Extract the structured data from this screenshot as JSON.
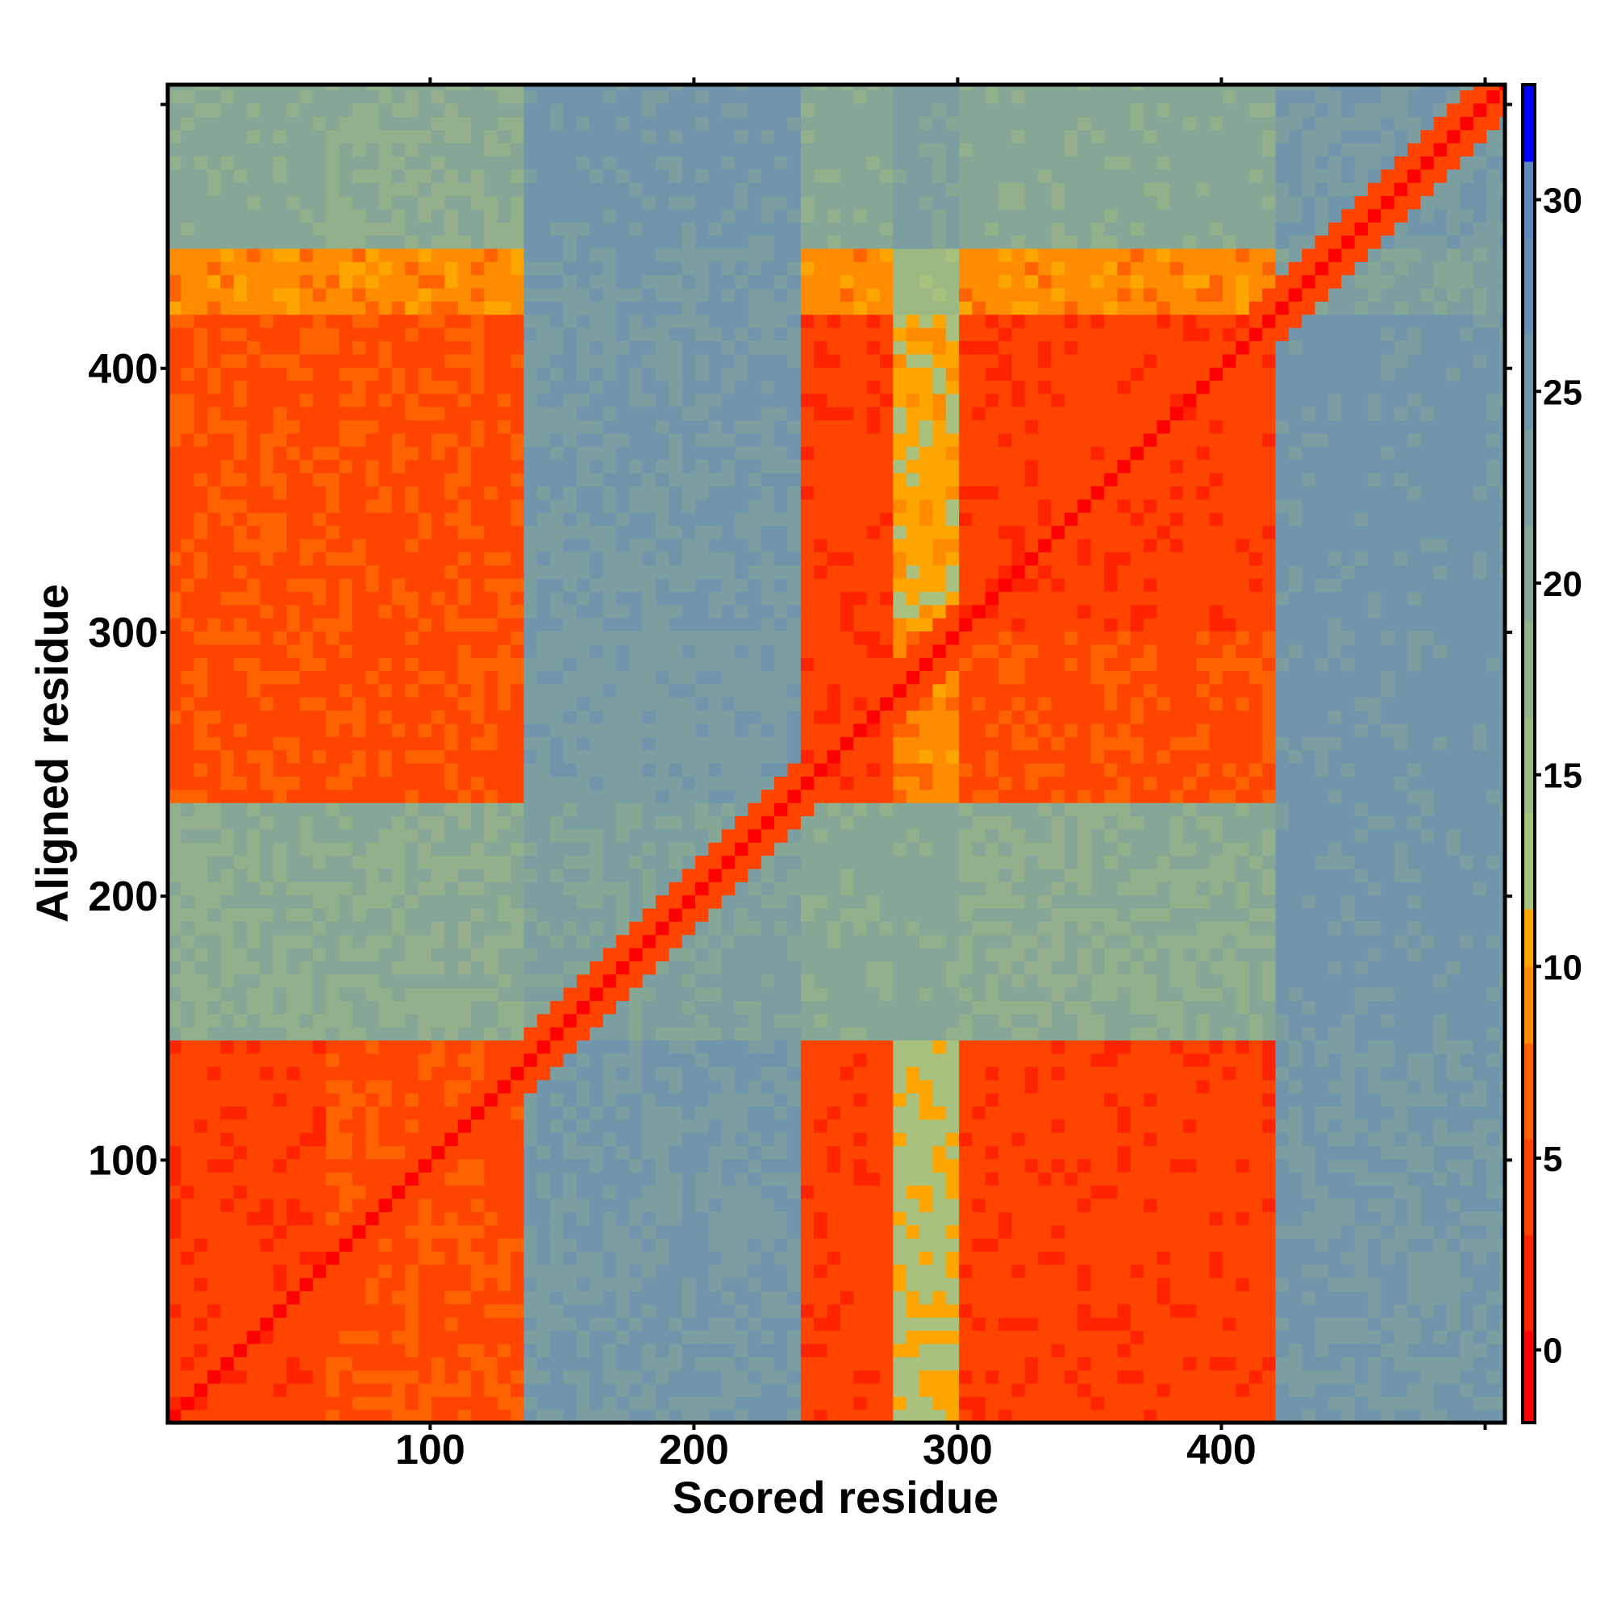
{
  "chart_data": {
    "type": "heatmap",
    "title": "",
    "xlabel": "Scored residue",
    "ylabel": "Aligned residue",
    "xlim": [
      0.5,
      507.5
    ],
    "ylim": [
      0.5,
      507.5
    ],
    "xticks": [
      100,
      200,
      300,
      400,
      500
    ],
    "xtick_labels": [
      "100",
      "200",
      "300",
      "400",
      ""
    ],
    "yticks": [
      100,
      200,
      300,
      400,
      500
    ],
    "ytick_labels": [
      "100",
      "200",
      "300",
      "400",
      ""
    ],
    "colorbar": {
      "range": [
        -1.9,
        33
      ],
      "ticks": [
        0,
        5,
        10,
        15,
        20,
        25,
        30
      ],
      "tick_labels": [
        "0",
        "5",
        "10",
        "15",
        "20",
        "25",
        "30"
      ],
      "bins": [
        {
          "from": -1.9,
          "to": 0.5,
          "color": "#ff0000"
        },
        {
          "from": 0.5,
          "to": 3,
          "color": "#ff2400"
        },
        {
          "from": 3,
          "to": 5.5,
          "color": "#ff4400"
        },
        {
          "from": 5.5,
          "to": 8,
          "color": "#ff6200"
        },
        {
          "from": 8,
          "to": 10,
          "color": "#ff8c00"
        },
        {
          "from": 10,
          "to": 11.5,
          "color": "#ffa500"
        },
        {
          "from": 11.5,
          "to": 14,
          "color": "#a9c17e"
        },
        {
          "from": 14,
          "to": 16.5,
          "color": "#9db983"
        },
        {
          "from": 16.5,
          "to": 19,
          "color": "#92b08c"
        },
        {
          "from": 19,
          "to": 21.5,
          "color": "#86a696"
        },
        {
          "from": 21.5,
          "to": 24,
          "color": "#7b9ea1"
        },
        {
          "from": 24,
          "to": 26.5,
          "color": "#7096ab"
        },
        {
          "from": 26.5,
          "to": 29,
          "color": "#668eb5"
        },
        {
          "from": 29,
          "to": 31,
          "color": "#5c88be"
        },
        {
          "from": 31,
          "to": 33,
          "color": "#0000ff"
        }
      ]
    },
    "row_segments": [
      [
        1,
        145
      ],
      [
        145,
        235
      ],
      [
        235,
        300
      ],
      [
        300,
        420
      ],
      [
        420,
        445
      ],
      [
        445,
        507
      ]
    ],
    "col_segments": [
      [
        1,
        62
      ],
      [
        62,
        137
      ],
      [
        137,
        243
      ],
      [
        243,
        275
      ],
      [
        275,
        302
      ],
      [
        302,
        423
      ],
      [
        423,
        507
      ]
    ],
    "block_values": [
      [
        4,
        5,
        24,
        4,
        12,
        4,
        24
      ],
      [
        19,
        19,
        22,
        20,
        20,
        19,
        25
      ],
      [
        5,
        5,
        23,
        4,
        9,
        5,
        25
      ],
      [
        5,
        5,
        24,
        4,
        11,
        4,
        25
      ],
      [
        9,
        9,
        24,
        9,
        15,
        9,
        22
      ],
      [
        20,
        19,
        25,
        20,
        22,
        20,
        24
      ]
    ],
    "diagonal_value": 0,
    "near_diagonal_value": 2,
    "cell_size_residues": 5
  }
}
